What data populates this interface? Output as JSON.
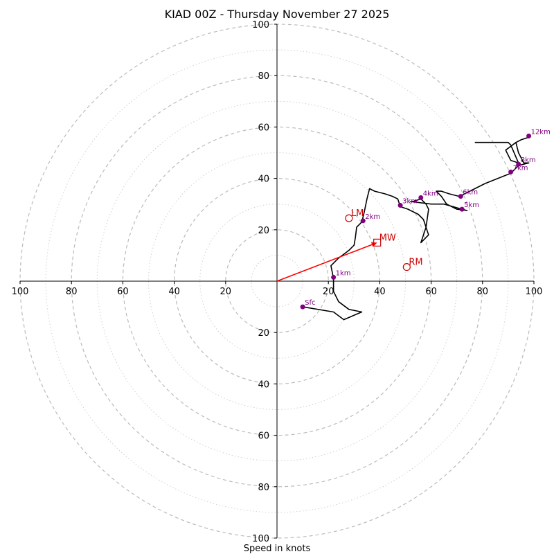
{
  "chart_data": {
    "type": "hodograph",
    "title": "KIAD 00Z - Thursday November 27 2025",
    "xlabel": "Speed in knots",
    "range": [
      -100,
      100
    ],
    "ring_step_dashed": 20,
    "ring_step_dotted": 10,
    "tick_labels_x": [
      "100",
      "80",
      "60",
      "40",
      "20",
      "20",
      "40",
      "60",
      "80",
      "100"
    ],
    "tick_labels_y": [
      "100",
      "80",
      "60",
      "40",
      "20",
      "20",
      "40",
      "60",
      "80",
      "100"
    ],
    "colors": {
      "trace": "#000000",
      "height_markers": "#800080",
      "motion": "#cc0000",
      "mean_wind_arrow": "#ff0000",
      "dashed_rings": "#bbbbbb",
      "dotted_rings": "#d0d0d0"
    },
    "trace": [
      [
        10,
        -10
      ],
      [
        22,
        -12
      ],
      [
        26,
        -15
      ],
      [
        33,
        -12
      ],
      [
        28,
        -11
      ],
      [
        24,
        -8
      ],
      [
        22,
        -4
      ],
      [
        22,
        1
      ],
      [
        21,
        6
      ],
      [
        24,
        9
      ],
      [
        28,
        12
      ],
      [
        30,
        14
      ],
      [
        30.5,
        17
      ],
      [
        31,
        21
      ],
      [
        33,
        23
      ],
      [
        34,
        27
      ],
      [
        35,
        32
      ],
      [
        36,
        36
      ],
      [
        38,
        35
      ],
      [
        42,
        34
      ],
      [
        45,
        33
      ],
      [
        47,
        32
      ],
      [
        48,
        29
      ],
      [
        51,
        28
      ],
      [
        55,
        26
      ],
      [
        57,
        24
      ],
      [
        59,
        18
      ],
      [
        56,
        15
      ],
      [
        58,
        21
      ],
      [
        59,
        28
      ],
      [
        58,
        30
      ],
      [
        56,
        32
      ],
      [
        53,
        31
      ],
      [
        52,
        31
      ],
      [
        60,
        30
      ],
      [
        65,
        30
      ],
      [
        72,
        28
      ],
      [
        74,
        27.5
      ],
      [
        70,
        28
      ],
      [
        66,
        30
      ],
      [
        64,
        33
      ],
      [
        62,
        35
      ],
      [
        64,
        35
      ],
      [
        67,
        34
      ],
      [
        71,
        33
      ],
      [
        81,
        38
      ],
      [
        91,
        42
      ],
      [
        94,
        45
      ],
      [
        98,
        46
      ],
      [
        96,
        46
      ],
      [
        95,
        48
      ],
      [
        94,
        50
      ],
      [
        93,
        54
      ],
      [
        95,
        55
      ],
      [
        98,
        56
      ],
      [
        95,
        55
      ],
      [
        93,
        54
      ],
      [
        89,
        51
      ],
      [
        91,
        47
      ],
      [
        94,
        46
      ],
      [
        91,
        53
      ],
      [
        90,
        54
      ],
      [
        77,
        54
      ]
    ],
    "height_markers": [
      {
        "label": "Sfc",
        "u": 10,
        "v": -10
      },
      {
        "label": "1km",
        "u": 22,
        "v": 1.5
      },
      {
        "label": "2km",
        "u": 33.5,
        "v": 23.5
      },
      {
        "label": "3km",
        "u": 48,
        "v": 29.5
      },
      {
        "label": "4km",
        "u": 56,
        "v": 32.5
      },
      {
        "label": "5km",
        "u": 72,
        "v": 28
      },
      {
        "label": "6km",
        "u": 71.5,
        "v": 33
      },
      {
        "label": "7km",
        "u": 91,
        "v": 42.5
      },
      {
        "label": "8km",
        "u": 94,
        "v": 45.5
      },
      {
        "label": "12km",
        "u": 98,
        "v": 56.5
      }
    ],
    "storm_motion": [
      {
        "label": "LM",
        "u": 28,
        "v": 24.5,
        "shape": "circle"
      },
      {
        "label": "RM",
        "u": 50.5,
        "v": 5.5,
        "shape": "circle"
      },
      {
        "label": "MW",
        "u": 39,
        "v": 15,
        "shape": "square"
      }
    ],
    "mean_wind_vector": {
      "u": 39,
      "v": 15
    }
  }
}
